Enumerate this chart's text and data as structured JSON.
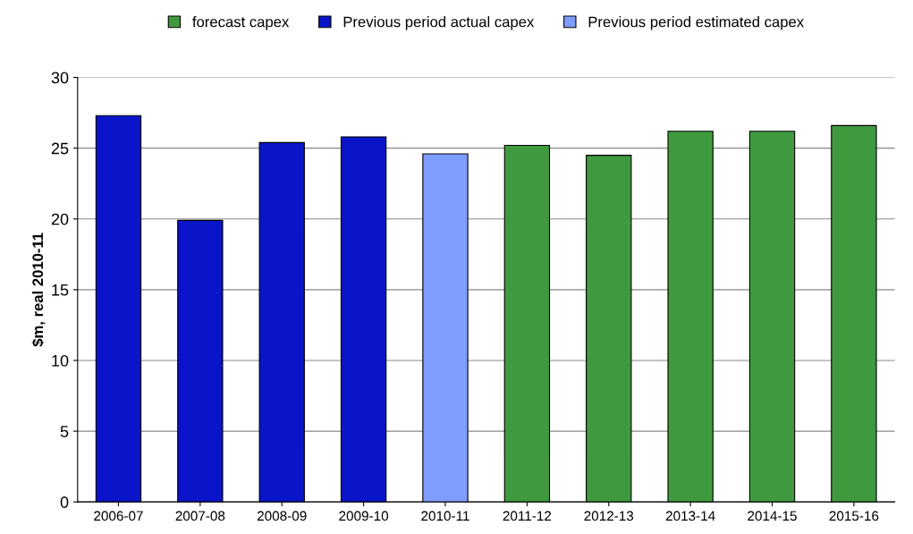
{
  "chart_data": {
    "type": "bar",
    "ylabel": "$m, real 2010-11",
    "categories": [
      "2006-07",
      "2007-08",
      "2008-09",
      "2009-10",
      "2010-11",
      "2011-12",
      "2012-13",
      "2013-14",
      "2014-15",
      "2015-16"
    ],
    "series": [
      {
        "name": "forecast capex",
        "color": "#3f9a3f",
        "values": [
          null,
          null,
          null,
          null,
          null,
          25.2,
          24.5,
          26.2,
          26.2,
          26.6
        ]
      },
      {
        "name": "Previous period actual capex",
        "color": "#0a14c8",
        "values": [
          27.3,
          19.9,
          25.4,
          25.8,
          null,
          null,
          null,
          null,
          null,
          null
        ]
      },
      {
        "name": "Previous period estimated capex",
        "color": "#7f9cff",
        "values": [
          null,
          null,
          null,
          null,
          24.6,
          null,
          null,
          null,
          null,
          null
        ]
      }
    ],
    "ylim": [
      0,
      30
    ],
    "yticks": [
      0,
      5,
      10,
      15,
      20,
      25,
      30
    ],
    "grid": "y",
    "legend": "top"
  }
}
